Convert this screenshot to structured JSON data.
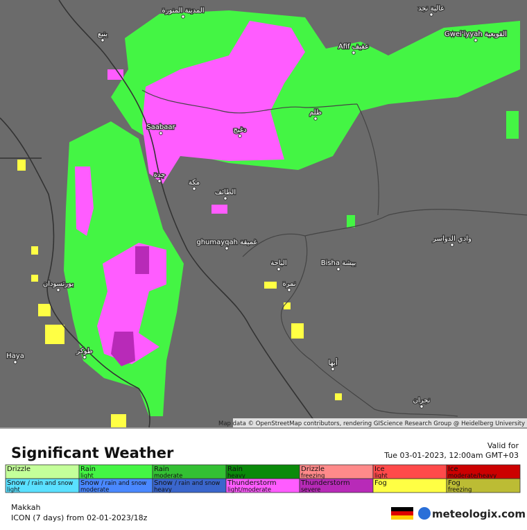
{
  "map": {
    "cities": [
      "المدينة المنورة",
      "ينبع",
      "Afif عفيف",
      "Gwei'iyyah القويعية",
      "عالية نجد",
      "ظلم",
      "Saabaar",
      "دغبج",
      "جدة",
      "مكة",
      "الطائف",
      "ghumayqah غميقة",
      "الباحة",
      "Bisha بيشة",
      "نمرة",
      "وادي الدواسر",
      "بورتسودان",
      "Haya",
      "طوكر",
      "أبها",
      "نجران"
    ],
    "attribution": "Map data © OpenStreetMap contributors, rendering GIScience Research Group @ Heidelberg University"
  },
  "legend": {
    "title": "Significant Weather",
    "valid_label": "Valid for",
    "valid_time": "Tue 03-01-2023, 12:00am GMT+03",
    "items": [
      {
        "name": "Drizzle",
        "sub": "",
        "color": "#c4ff9a"
      },
      {
        "name": "Rain",
        "sub": "light",
        "color": "#44f544"
      },
      {
        "name": "Rain",
        "sub": "moderate",
        "color": "#33c033"
      },
      {
        "name": "Rain",
        "sub": "heavy",
        "color": "#0a8a0a"
      },
      {
        "name": "Drizzle",
        "sub": "freezing",
        "color": "#ff8a8a"
      },
      {
        "name": "Ice",
        "sub": "light",
        "color": "#ff4a4a"
      },
      {
        "name": "Ice",
        "sub": "moderate/heavy",
        "color": "#cc0000"
      },
      {
        "name": "Snow",
        "sub": "light",
        "extra": "/ rain and snow",
        "color": "#5ae0ff"
      },
      {
        "name": "Snow",
        "sub": "moderate",
        "extra": "/ rain and snow",
        "color": "#4a88ff"
      },
      {
        "name": "Snow",
        "sub": "heavy",
        "extra": "/ rain and snow",
        "color": "#3a66cc"
      },
      {
        "name": "Thunderstorm",
        "sub": "light/moderate",
        "color": "#ff5cff"
      },
      {
        "name": "Thunderstorm",
        "sub": "severe",
        "color": "#b82ab8"
      },
      {
        "name": "Fog",
        "sub": "",
        "color": "#ffff44"
      },
      {
        "name": "Fog",
        "sub": "freezing",
        "color": "#bcbc34"
      }
    ],
    "location": "Makkah",
    "model": "ICON (7 days) from  02-01-2023/18z",
    "brand": "meteologix.com"
  }
}
